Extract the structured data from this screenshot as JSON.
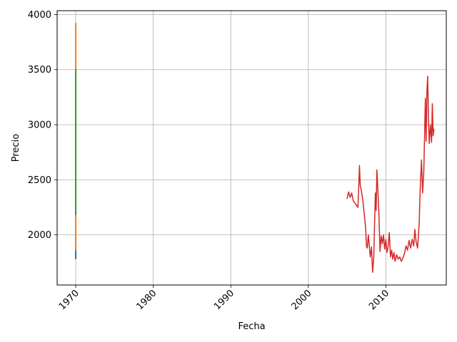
{
  "chart_data": {
    "type": "line",
    "title": "",
    "xlabel": "Fecha",
    "ylabel": "Precio",
    "xlim": [
      1967.6,
      2017.8
    ],
    "ylim": [
      1545,
      4035
    ],
    "xticks": [
      1970,
      1980,
      1990,
      2000,
      2010
    ],
    "yticks": [
      2000,
      2500,
      3000,
      3500,
      4000
    ],
    "grid": true,
    "legend": "none",
    "series": [
      {
        "color": "#1f77b4",
        "points": [
          [
            1970.0,
            1780
          ],
          [
            1970.0,
            1850
          ],
          [
            1970.0,
            1820
          ],
          [
            1970.0,
            2050
          ],
          [
            1970.0,
            1880
          ],
          [
            1970.0,
            1950
          ]
        ]
      },
      {
        "color": "#ff7f0e",
        "points": [
          [
            1970.0,
            1860
          ],
          [
            1970.0,
            2300
          ],
          [
            1970.0,
            2600
          ],
          [
            1970.0,
            3100
          ],
          [
            1970.0,
            3550
          ],
          [
            1970.0,
            3920
          ],
          [
            1970.0,
            3400
          ],
          [
            1970.0,
            2500
          ]
        ]
      },
      {
        "color": "#2ca02c",
        "points": [
          [
            1970.0,
            2180
          ],
          [
            1970.0,
            2400
          ],
          [
            1970.0,
            2700
          ],
          [
            1970.0,
            3000
          ],
          [
            1970.0,
            3300
          ],
          [
            1970.0,
            3500
          ],
          [
            1970.0,
            2900
          ],
          [
            1970.0,
            2300
          ]
        ]
      },
      {
        "color": "#d62728",
        "points": [
          [
            2005.0,
            2330
          ],
          [
            2005.2,
            2390
          ],
          [
            2005.4,
            2340
          ],
          [
            2005.6,
            2380
          ],
          [
            2005.8,
            2310
          ],
          [
            2006.0,
            2290
          ],
          [
            2006.2,
            2270
          ],
          [
            2006.4,
            2250
          ],
          [
            2006.5,
            2420
          ],
          [
            2006.6,
            2630
          ],
          [
            2006.7,
            2450
          ],
          [
            2006.85,
            2400
          ],
          [
            2007.0,
            2330
          ],
          [
            2007.1,
            2270
          ],
          [
            2007.25,
            2170
          ],
          [
            2007.4,
            2060
          ],
          [
            2007.5,
            1900
          ],
          [
            2007.6,
            1880
          ],
          [
            2007.75,
            2000
          ],
          [
            2007.9,
            1870
          ],
          [
            2008.0,
            1800
          ],
          [
            2008.15,
            1890
          ],
          [
            2008.3,
            1660
          ],
          [
            2008.45,
            1800
          ],
          [
            2008.55,
            2100
          ],
          [
            2008.65,
            2380
          ],
          [
            2008.75,
            2220
          ],
          [
            2008.85,
            2590
          ],
          [
            2008.95,
            2450
          ],
          [
            2009.1,
            2200
          ],
          [
            2009.25,
            1850
          ],
          [
            2009.4,
            1990
          ],
          [
            2009.55,
            1920
          ],
          [
            2009.7,
            2000
          ],
          [
            2009.85,
            1870
          ],
          [
            2010.0,
            1960
          ],
          [
            2010.15,
            1840
          ],
          [
            2010.3,
            1900
          ],
          [
            2010.45,
            2020
          ],
          [
            2010.6,
            1800
          ],
          [
            2010.75,
            1860
          ],
          [
            2010.9,
            1780
          ],
          [
            2011.05,
            1840
          ],
          [
            2011.2,
            1760
          ],
          [
            2011.4,
            1820
          ],
          [
            2011.6,
            1780
          ],
          [
            2011.8,
            1800
          ],
          [
            2012.0,
            1760
          ],
          [
            2012.2,
            1790
          ],
          [
            2012.4,
            1830
          ],
          [
            2012.6,
            1900
          ],
          [
            2012.8,
            1860
          ],
          [
            2013.0,
            1950
          ],
          [
            2013.2,
            1880
          ],
          [
            2013.4,
            1960
          ],
          [
            2013.6,
            1900
          ],
          [
            2013.75,
            2050
          ],
          [
            2013.9,
            1940
          ],
          [
            2014.1,
            1880
          ],
          [
            2014.3,
            2100
          ],
          [
            2014.45,
            2440
          ],
          [
            2014.6,
            2680
          ],
          [
            2014.75,
            2380
          ],
          [
            2014.9,
            2580
          ],
          [
            2015.0,
            2900
          ],
          [
            2015.1,
            3240
          ],
          [
            2015.2,
            2850
          ],
          [
            2015.3,
            3300
          ],
          [
            2015.4,
            3440
          ],
          [
            2015.5,
            3050
          ],
          [
            2015.6,
            2830
          ],
          [
            2015.75,
            3000
          ],
          [
            2015.9,
            2840
          ],
          [
            2016.0,
            3190
          ],
          [
            2016.1,
            2900
          ],
          [
            2016.2,
            2960
          ]
        ]
      }
    ]
  }
}
